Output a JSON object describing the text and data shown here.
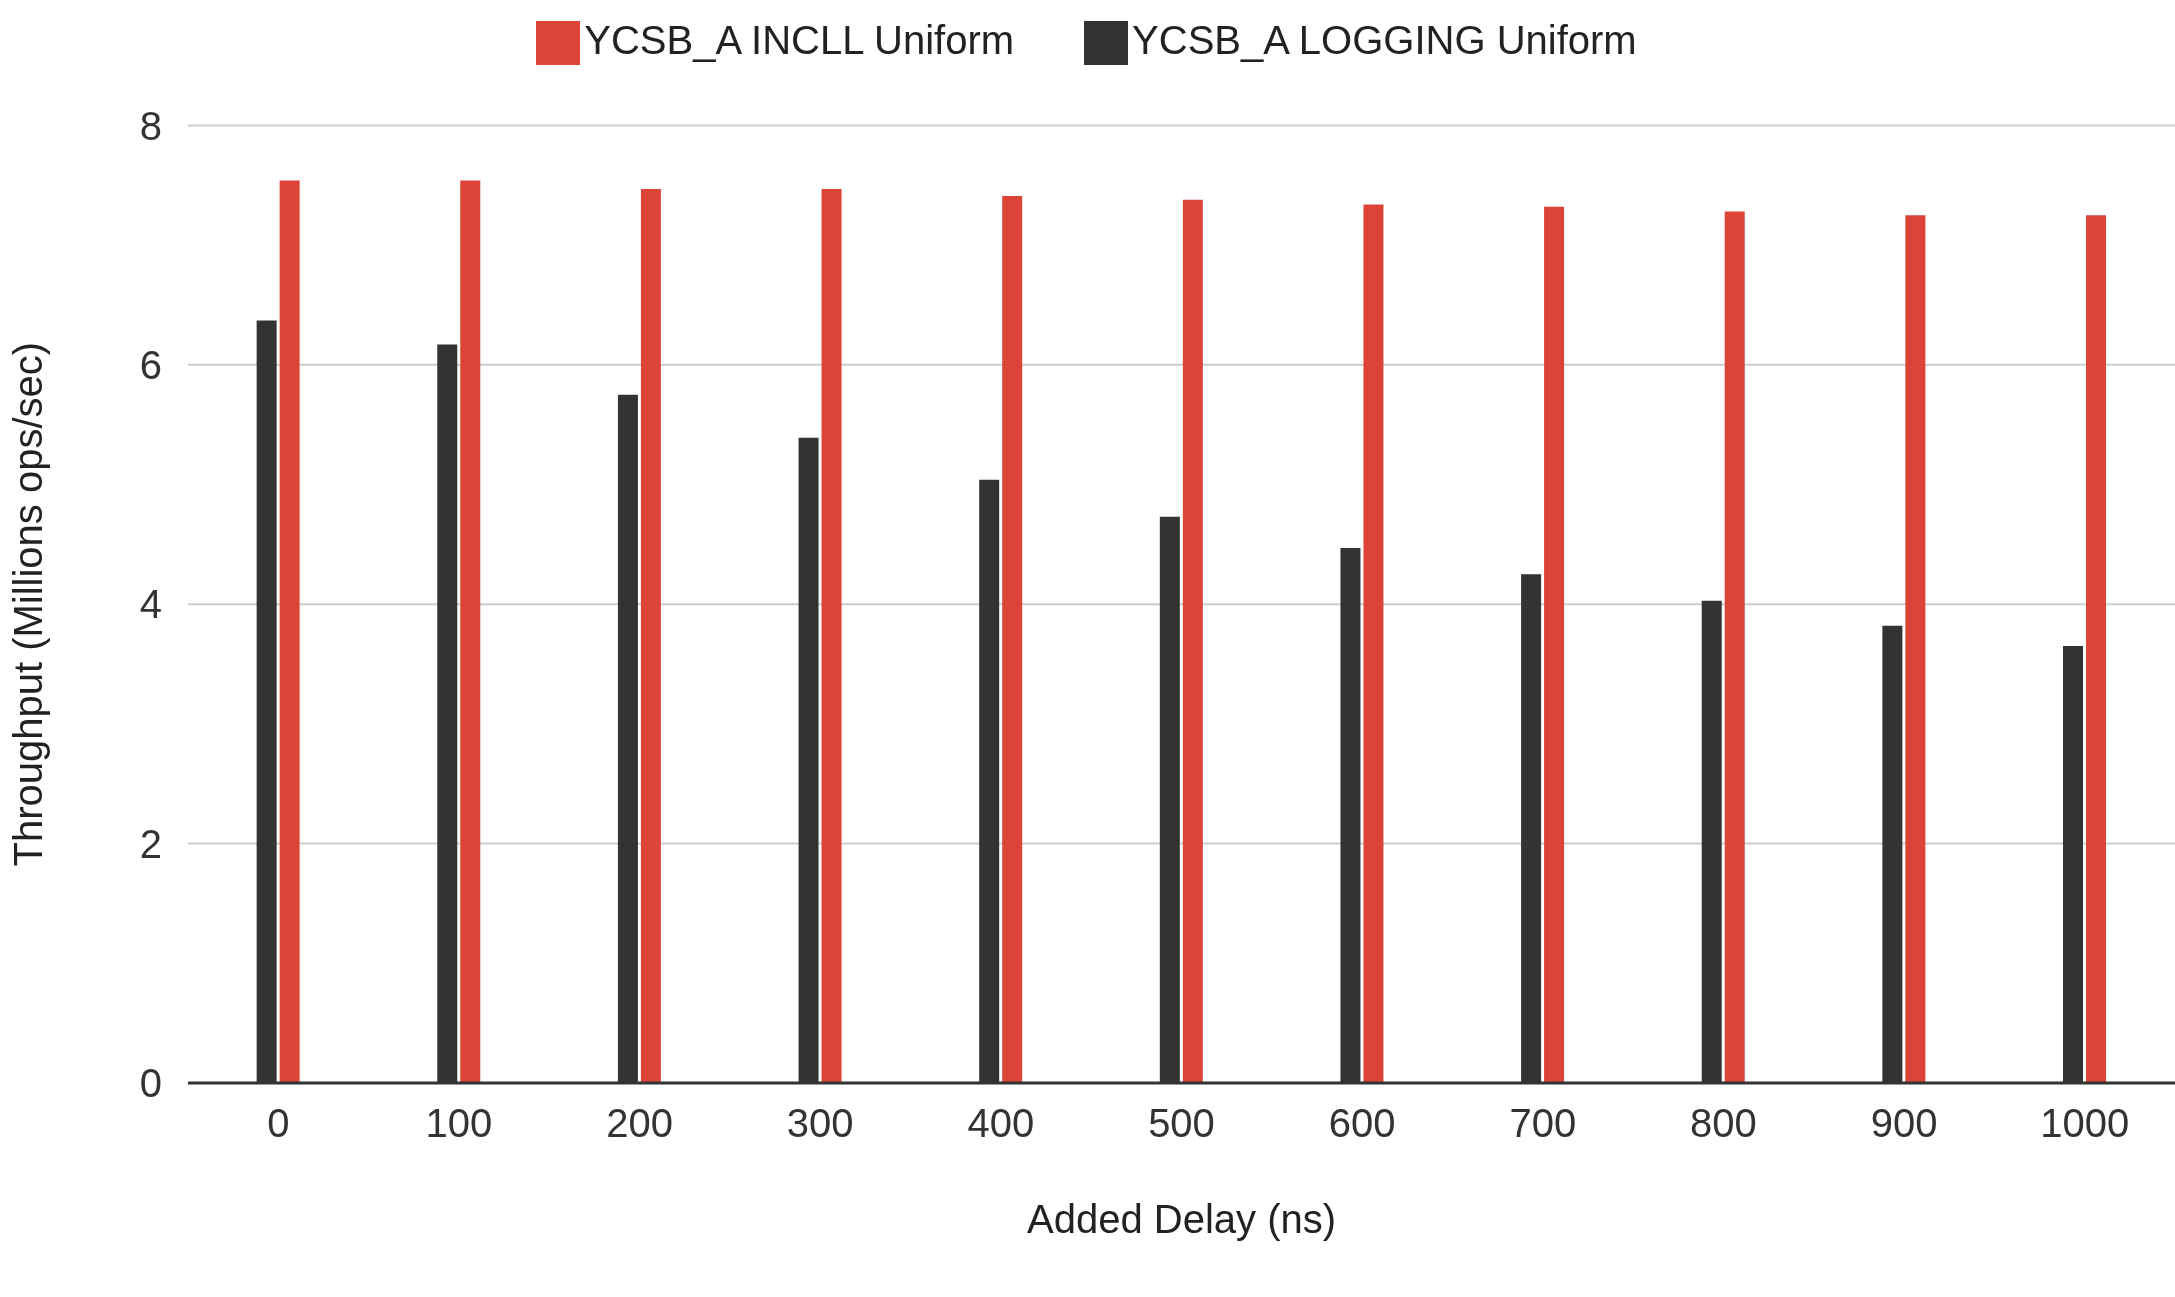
{
  "chart_data": {
    "type": "bar",
    "xlabel": "Added Delay (ns)",
    "ylabel": "Throughput (Millions ops/sec)",
    "categories": [
      "0",
      "100",
      "200",
      "300",
      "400",
      "500",
      "600",
      "700",
      "800",
      "900",
      "1000"
    ],
    "series": [
      {
        "name": "YCSB_A LOGGING Uniform",
        "color": "#333333",
        "values": [
          6.37,
          6.17,
          5.75,
          5.39,
          5.04,
          4.73,
          4.47,
          4.25,
          4.03,
          3.82,
          3.65
        ]
      },
      {
        "name": "YCSB_A INCLL Uniform",
        "color": "#db4437",
        "values": [
          7.54,
          7.54,
          7.47,
          7.47,
          7.41,
          7.38,
          7.34,
          7.32,
          7.28,
          7.25,
          7.25
        ]
      }
    ],
    "ylim": [
      0,
      8
    ],
    "yticks": [
      0,
      2,
      4,
      6,
      8
    ],
    "grid": "y",
    "legend": "top"
  }
}
